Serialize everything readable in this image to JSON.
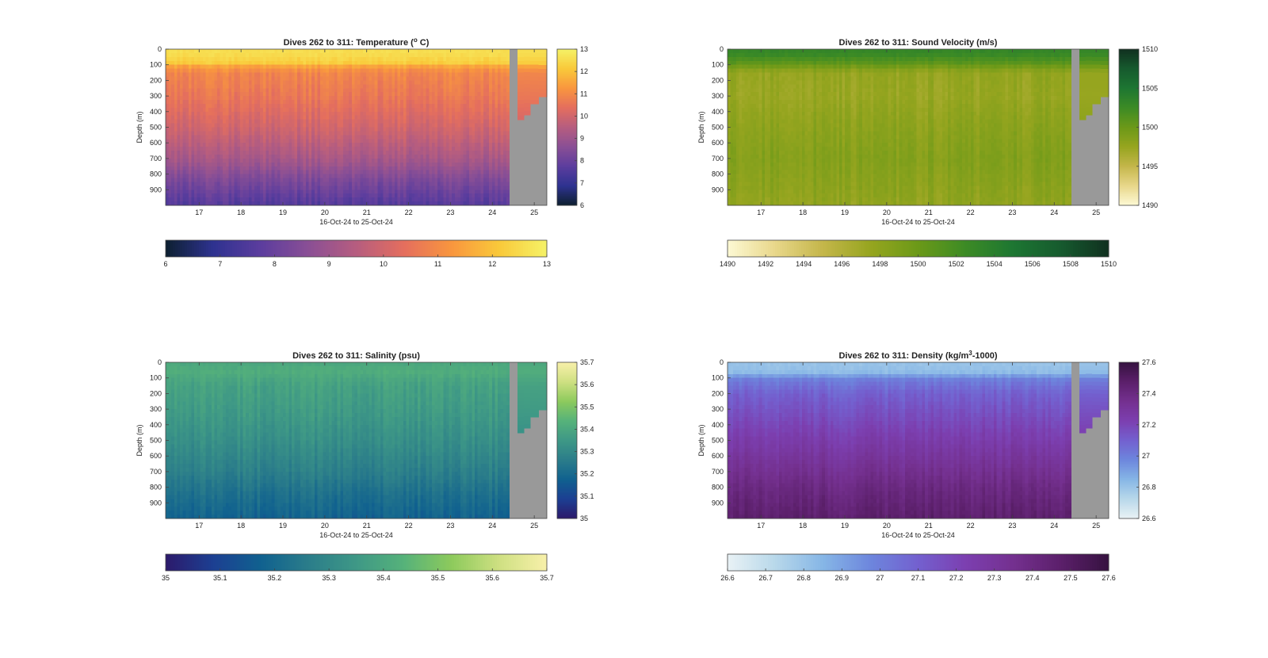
{
  "figure": {
    "background": "#ffffff",
    "land_color": "#999999"
  },
  "chart_data": [
    {
      "type": "heatmap",
      "variable": "temperature",
      "title_main": "Dives 262 to 311: Temperature (",
      "title_sup": "o",
      "title_end": " C)",
      "xlabel": "16-Oct-24 to 25-Oct-24",
      "ylabel": "Depth (m)",
      "xlim": [
        16.2,
        25.3
      ],
      "ylim": [
        0,
        1000
      ],
      "xticks": [
        "17",
        "18",
        "19",
        "20",
        "21",
        "22",
        "23",
        "24",
        "25"
      ],
      "yticks": [
        "0",
        "100",
        "200",
        "300",
        "400",
        "500",
        "600",
        "700",
        "800",
        "900"
      ],
      "colorbar_range": [
        6,
        13
      ],
      "colorbar_ticks": [
        "6",
        "7",
        "8",
        "9",
        "10",
        "11",
        "12",
        "13"
      ],
      "horiz_colorbar_ticks": [
        "6",
        "7",
        "8",
        "9",
        "10",
        "11",
        "12",
        "13"
      ],
      "colormap": [
        "#0d2030",
        "#2e3290",
        "#5c3d9e",
        "#8a4f95",
        "#b65d7f",
        "#e46e5e",
        "#f9963e",
        "#f9c93a",
        "#f5f267"
      ],
      "profile": {
        "depths": [
          0,
          40,
          90,
          110,
          150,
          300,
          500,
          700,
          850,
          1000
        ],
        "values": [
          12.6,
          12.5,
          12.2,
          11.5,
          10.9,
          10.6,
          10.0,
          9.2,
          8.3,
          7.6
        ]
      },
      "last_dive_x": 24.4,
      "last_dive_depth": 1000,
      "gap_end_x": 24.6,
      "post_gap_bottom": [
        {
          "x": 24.6,
          "depth": 450
        },
        {
          "x": 24.75,
          "depth": 420
        },
        {
          "x": 24.9,
          "depth": 350
        },
        {
          "x": 25.1,
          "depth": 305
        },
        {
          "x": 25.3,
          "depth": 300
        }
      ]
    },
    {
      "type": "heatmap",
      "variable": "sound_velocity",
      "title_main": "Dives 262 to 311: Sound Velocity (m/s)",
      "title_sup": "",
      "title_end": "",
      "xlabel": "16-Oct-24 to 25-Oct-24",
      "ylabel": "Depth (m)",
      "xlim": [
        16.2,
        25.3
      ],
      "ylim": [
        0,
        1000
      ],
      "xticks": [
        "17",
        "18",
        "19",
        "20",
        "21",
        "22",
        "23",
        "24",
        "25"
      ],
      "yticks": [
        "0",
        "100",
        "200",
        "300",
        "400",
        "500",
        "600",
        "700",
        "800",
        "900"
      ],
      "colorbar_range": [
        1490,
        1510
      ],
      "colorbar_ticks": [
        "1490",
        "1495",
        "1500",
        "1505",
        "1510"
      ],
      "horiz_colorbar_ticks": [
        "1490",
        "1492",
        "1494",
        "1496",
        "1498",
        "1500",
        "1502",
        "1504",
        "1506",
        "1508",
        "1510"
      ],
      "colormap": [
        "#fdf9d4",
        "#e8d78a",
        "#c4b64a",
        "#96a51f",
        "#6b9918",
        "#3c8b25",
        "#1d7632",
        "#165a2e",
        "#10301f"
      ],
      "profile": {
        "depths": [
          0,
          40,
          90,
          150,
          300,
          500,
          700,
          850,
          1000
        ],
        "values": [
          1503.2,
          1502.6,
          1500.8,
          1497.6,
          1497.4,
          1498.1,
          1498.6,
          1498.2,
          1497.8
        ]
      },
      "last_dive_x": 24.4,
      "last_dive_depth": 1000,
      "gap_end_x": 24.6,
      "post_gap_bottom": [
        {
          "x": 24.6,
          "depth": 450
        },
        {
          "x": 24.75,
          "depth": 420
        },
        {
          "x": 24.9,
          "depth": 350
        },
        {
          "x": 25.1,
          "depth": 305
        },
        {
          "x": 25.3,
          "depth": 300
        }
      ]
    },
    {
      "type": "heatmap",
      "variable": "salinity",
      "title_main": "Dives 262 to 311: Salinity (psu)",
      "title_sup": "",
      "title_end": "",
      "xlabel": "16-Oct-24 to 25-Oct-24",
      "ylabel": "Depth (m)",
      "xlim": [
        16.2,
        25.3
      ],
      "ylim": [
        0,
        1000
      ],
      "xticks": [
        "17",
        "18",
        "19",
        "20",
        "21",
        "22",
        "23",
        "24",
        "25"
      ],
      "yticks": [
        "0",
        "100",
        "200",
        "300",
        "400",
        "500",
        "600",
        "700",
        "800",
        "900"
      ],
      "colorbar_range": [
        35,
        35.7
      ],
      "colorbar_ticks": [
        "35",
        "35.1",
        "35.2",
        "35.3",
        "35.4",
        "35.5",
        "35.6",
        "35.7"
      ],
      "horiz_colorbar_ticks": [
        "35",
        "35.1",
        "35.2",
        "35.3",
        "35.4",
        "35.5",
        "35.6",
        "35.7"
      ],
      "colormap": [
        "#2c1a6b",
        "#1c3f92",
        "#10618f",
        "#2b7d8a",
        "#3e9886",
        "#56b27a",
        "#8dca5c",
        "#cfe082",
        "#f8f0aa"
      ],
      "profile": {
        "depths": [
          0,
          60,
          150,
          300,
          500,
          700,
          850,
          1000
        ],
        "values": [
          35.4,
          35.42,
          35.38,
          35.36,
          35.32,
          35.27,
          35.22,
          35.18
        ]
      },
      "last_dive_x": 24.4,
      "last_dive_depth": 1000,
      "gap_end_x": 24.6,
      "post_gap_bottom": [
        {
          "x": 24.6,
          "depth": 450
        },
        {
          "x": 24.75,
          "depth": 420
        },
        {
          "x": 24.9,
          "depth": 350
        },
        {
          "x": 25.1,
          "depth": 305
        },
        {
          "x": 25.3,
          "depth": 300
        }
      ]
    },
    {
      "type": "heatmap",
      "variable": "density",
      "title_main": "Dives 262 to 311: Density (kg/m",
      "title_sup": "3",
      "title_end": "-1000)",
      "xlabel": "16-Oct-24 to 25-Oct-24",
      "ylabel": "Depth (m)",
      "xlim": [
        16.2,
        25.3
      ],
      "ylim": [
        0,
        1000
      ],
      "xticks": [
        "17",
        "18",
        "19",
        "20",
        "21",
        "22",
        "23",
        "24",
        "25"
      ],
      "yticks": [
        "0",
        "100",
        "200",
        "300",
        "400",
        "500",
        "600",
        "700",
        "800",
        "900"
      ],
      "colorbar_range": [
        26.6,
        27.6
      ],
      "colorbar_ticks": [
        "26.6",
        "26.8",
        "27",
        "27.2",
        "27.4",
        "27.6"
      ],
      "horiz_colorbar_ticks": [
        "26.6",
        "26.7",
        "26.8",
        "26.9",
        "27",
        "27.1",
        "27.2",
        "27.3",
        "27.4",
        "27.5",
        "27.6"
      ],
      "colormap": [
        "#e9f2f5",
        "#b8d8ea",
        "#86b6e6",
        "#6d86dd",
        "#7360cf",
        "#7c3fb0",
        "#74308f",
        "#5b1f6a",
        "#361240"
      ],
      "profile": {
        "depths": [
          0,
          60,
          110,
          200,
          400,
          600,
          800,
          1000
        ],
        "values": [
          26.8,
          26.82,
          27.0,
          27.1,
          27.2,
          27.3,
          27.4,
          27.47
        ]
      },
      "last_dive_x": 24.4,
      "last_dive_depth": 1000,
      "gap_end_x": 24.6,
      "post_gap_bottom": [
        {
          "x": 24.6,
          "depth": 450
        },
        {
          "x": 24.75,
          "depth": 420
        },
        {
          "x": 24.9,
          "depth": 350
        },
        {
          "x": 25.1,
          "depth": 305
        },
        {
          "x": 25.3,
          "depth": 300
        }
      ]
    }
  ]
}
